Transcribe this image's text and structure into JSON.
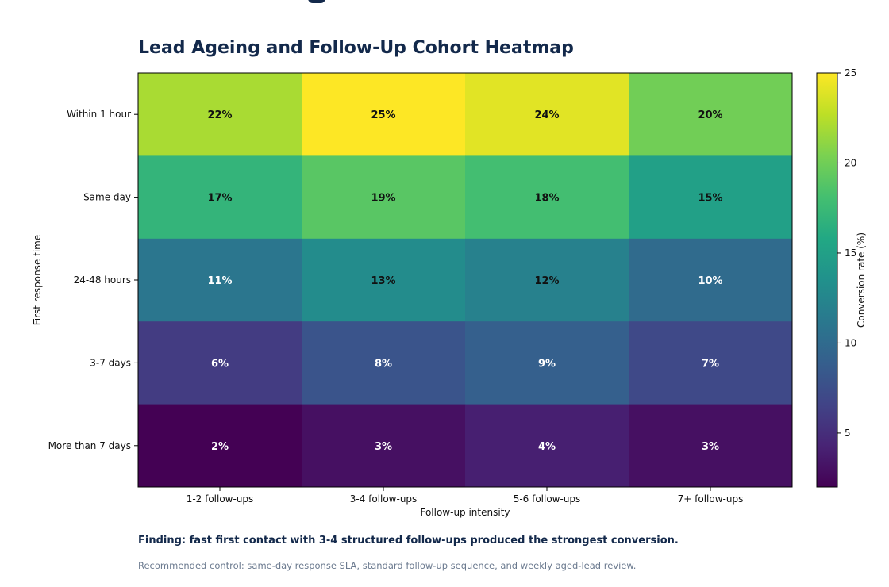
{
  "title": "Lead Ageing and Follow-Up Cohort Heatmap",
  "finding": "Finding: fast first contact with 3-4 structured follow-ups produced the strongest conversion.",
  "recommendation": "Recommended control: same-day response SLA, standard follow-up sequence, and weekly aged-lead review.",
  "chart_data": {
    "type": "heatmap",
    "title": "Lead Ageing and Follow-Up Cohort Heatmap",
    "xlabel": "Follow-up intensity",
    "ylabel": "First response time",
    "x_categories": [
      "1-2 follow-ups",
      "3-4 follow-ups",
      "5-6 follow-ups",
      "7+ follow-ups"
    ],
    "y_categories": [
      "Within 1 hour",
      "Same day",
      "24-48 hours",
      "3-7 days",
      "More than 7 days"
    ],
    "values": [
      [
        22,
        25,
        24,
        20
      ],
      [
        17,
        19,
        18,
        15
      ],
      [
        11,
        13,
        12,
        10
      ],
      [
        6,
        8,
        9,
        7
      ],
      [
        2,
        3,
        4,
        3
      ]
    ],
    "value_suffix": "%",
    "colormap": "viridis",
    "colorbar": {
      "label": "Conversion rate (%)",
      "range": [
        2,
        25
      ],
      "ticks": [
        5,
        10,
        15,
        20,
        25
      ]
    },
    "grid": false
  }
}
